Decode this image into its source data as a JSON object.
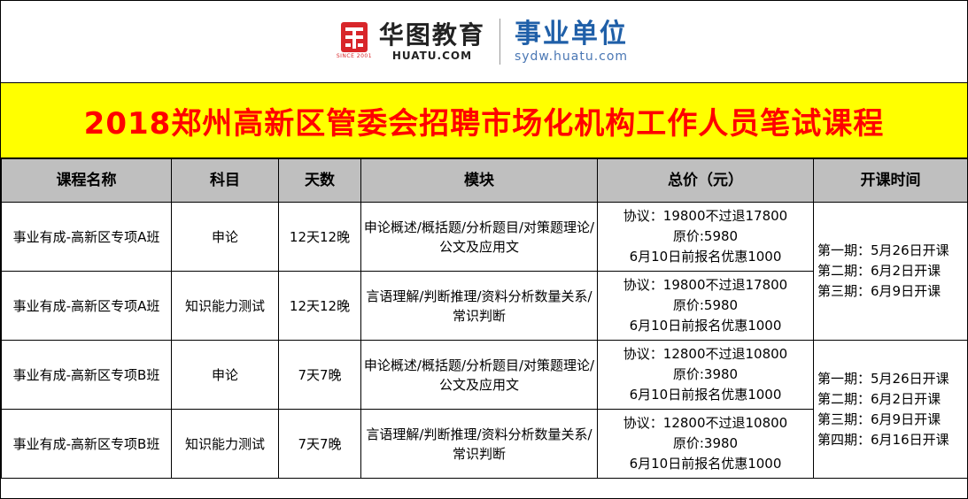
{
  "header": {
    "brand_cn": "华图教育",
    "brand_en": "HUATU.COM",
    "brand_since": "SINCE 2001",
    "sub_brand_cn": "事业单位",
    "sub_brand_url": "sydw.huatu.com",
    "colors": {
      "brand_red": "#d8262a",
      "sub_blue": "#1f5fa8"
    }
  },
  "title": "2018郑州高新区管委会招聘市场化机构工作人员笔试课程",
  "title_colors": {
    "text": "#ff0000",
    "background": "#ffff00"
  },
  "table": {
    "header_bg": "#bfbfbf",
    "columns": [
      "课程名称",
      "科目",
      "天数",
      "模块",
      "总价（元）",
      "开课时间"
    ],
    "rows": [
      {
        "name": "事业有成-高新区专项A班",
        "subject": "申论",
        "days": "12天12晚",
        "module": "申论概述/概括题/分析题目/对策题理论/公文及应用文",
        "price": [
          "协议：19800不过退17800",
          "原价:5980",
          "6月10日前报名优惠1000"
        ]
      },
      {
        "name": "事业有成-高新区专项A班",
        "subject": "知识能力测试",
        "days": "12天12晚",
        "module": "言语理解/判断推理/资料分析数量关系/常识判断",
        "price": [
          "协议：19800不过退17800",
          "原价:5980",
          "6月10日前报名优惠1000"
        ]
      },
      {
        "name": "事业有成-高新区专项B班",
        "subject": "申论",
        "days": "7天7晚",
        "module": "申论概述/概括题/分析题目/对策题理论/公文及应用文",
        "price": [
          "协议：12800不过退10800",
          "原价:3980",
          "6月10日前报名优惠1000"
        ]
      },
      {
        "name": "事业有成-高新区专项B班",
        "subject": "知识能力测试",
        "days": "7天7晚",
        "module": "言语理解/判断推理/资料分析数量关系/常识判断",
        "price": [
          "协议：12800不过退10800",
          "原价:3980",
          "6月10日前报名优惠1000"
        ]
      }
    ],
    "schedule_a": [
      "第一期：5月26日开课",
      "第二期：6月2日开课",
      "第三期：6月9日开课"
    ],
    "schedule_b": [
      "第一期：5月26日开课",
      "第二期：6月2日开课",
      "第三期：6月9日开课",
      "第四期：6月16日开课"
    ]
  }
}
